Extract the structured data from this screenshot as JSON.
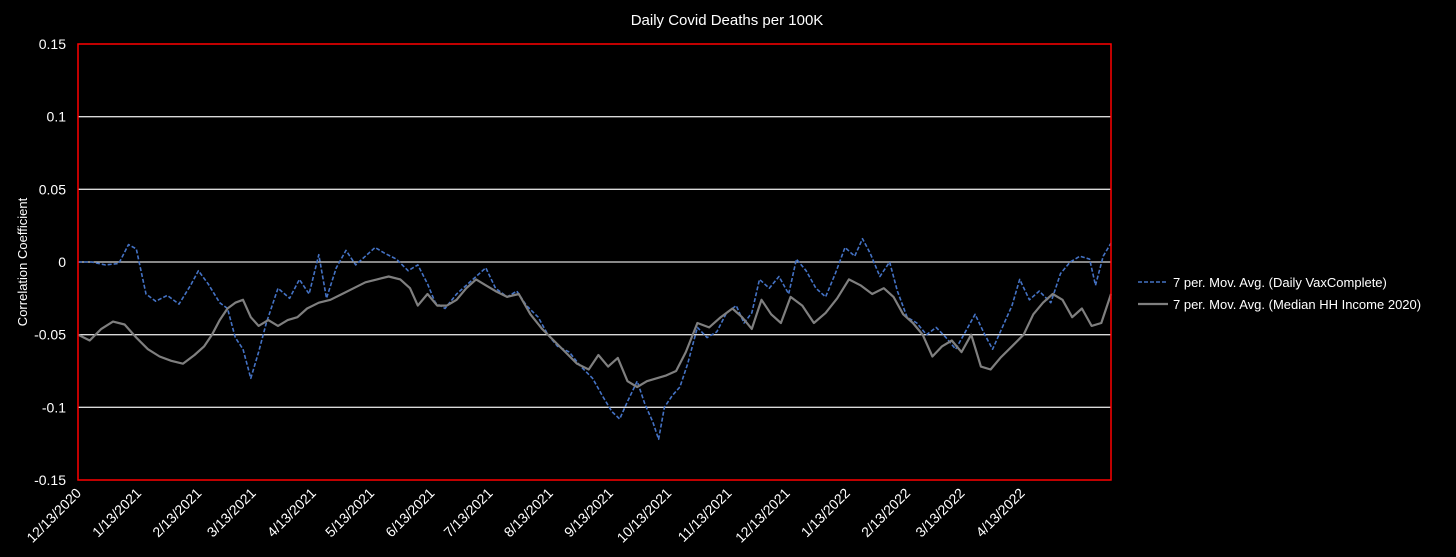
{
  "chart_data": {
    "type": "line",
    "title": "Daily Covid Deaths per 100K",
    "xlabel": "",
    "ylabel": "Correlation Coefficient",
    "ylim": [
      -0.15,
      0.15
    ],
    "y_ticks": [
      "0.15",
      "0.1",
      "0.05",
      "0",
      "-0.05",
      "-0.1",
      "-0.15"
    ],
    "y_tick_values": [
      0.15,
      0.1,
      0.05,
      0,
      -0.05,
      -0.1,
      -0.15
    ],
    "xlim": [
      "2020-12-13",
      "2022-05-29"
    ],
    "x_ticks": [
      {
        "label": "12/13/2020",
        "date": "2020-12-13"
      },
      {
        "label": "1/13/2021",
        "date": "2021-01-13"
      },
      {
        "label": "2/13/2021",
        "date": "2021-02-13"
      },
      {
        "label": "3/13/2021",
        "date": "2021-03-13"
      },
      {
        "label": "4/13/2021",
        "date": "2021-04-13"
      },
      {
        "label": "5/13/2021",
        "date": "2021-05-13"
      },
      {
        "label": "6/13/2021",
        "date": "2021-06-13"
      },
      {
        "label": "7/13/2021",
        "date": "2021-07-13"
      },
      {
        "label": "8/13/2021",
        "date": "2021-08-13"
      },
      {
        "label": "9/13/2021",
        "date": "2021-09-13"
      },
      {
        "label": "10/13/2021",
        "date": "2021-10-13"
      },
      {
        "label": "11/13/2021",
        "date": "2021-11-13"
      },
      {
        "label": "12/13/2021",
        "date": "2021-12-13"
      },
      {
        "label": "1/13/2022",
        "date": "2022-01-13"
      },
      {
        "label": "2/13/2022",
        "date": "2022-02-13"
      },
      {
        "label": "3/13/2022",
        "date": "2022-03-13"
      },
      {
        "label": "4/13/2022",
        "date": "2022-04-13"
      }
    ],
    "grid": true,
    "legend_position": "right",
    "plot_border_color": "#ff0000",
    "series": [
      {
        "name": "7 per. Mov. Avg. (Daily VaxComplete)",
        "color": "#4472c4",
        "dash": "dashed",
        "points": [
          [
            "2020-12-13",
            0.0
          ],
          [
            "2020-12-20",
            0.0
          ],
          [
            "2020-12-27",
            -0.002
          ],
          [
            "2021-01-03",
            -0.001
          ],
          [
            "2021-01-08",
            0.012
          ],
          [
            "2021-01-12",
            0.009
          ],
          [
            "2021-01-17",
            -0.022
          ],
          [
            "2021-01-22",
            -0.027
          ],
          [
            "2021-01-28",
            -0.023
          ],
          [
            "2021-02-03",
            -0.029
          ],
          [
            "2021-02-09",
            -0.016
          ],
          [
            "2021-02-13",
            -0.006
          ],
          [
            "2021-02-18",
            -0.015
          ],
          [
            "2021-02-24",
            -0.028
          ],
          [
            "2021-02-28",
            -0.032
          ],
          [
            "2021-03-04",
            -0.052
          ],
          [
            "2021-03-08",
            -0.06
          ],
          [
            "2021-03-12",
            -0.08
          ],
          [
            "2021-03-16",
            -0.062
          ],
          [
            "2021-03-20",
            -0.042
          ],
          [
            "2021-03-26",
            -0.018
          ],
          [
            "2021-04-01",
            -0.025
          ],
          [
            "2021-04-06",
            -0.012
          ],
          [
            "2021-04-11",
            -0.022
          ],
          [
            "2021-04-16",
            0.005
          ],
          [
            "2021-04-20",
            -0.025
          ],
          [
            "2021-04-25",
            -0.004
          ],
          [
            "2021-04-30",
            0.008
          ],
          [
            "2021-05-05",
            -0.002
          ],
          [
            "2021-05-10",
            0.004
          ],
          [
            "2021-05-15",
            0.01
          ],
          [
            "2021-05-20",
            0.006
          ],
          [
            "2021-05-26",
            0.002
          ],
          [
            "2021-06-01",
            -0.006
          ],
          [
            "2021-06-06",
            -0.002
          ],
          [
            "2021-06-11",
            -0.015
          ],
          [
            "2021-06-15",
            -0.028
          ],
          [
            "2021-06-20",
            -0.032
          ],
          [
            "2021-06-26",
            -0.022
          ],
          [
            "2021-07-01",
            -0.016
          ],
          [
            "2021-07-06",
            -0.01
          ],
          [
            "2021-07-11",
            -0.004
          ],
          [
            "2021-07-16",
            -0.018
          ],
          [
            "2021-07-22",
            -0.024
          ],
          [
            "2021-07-27",
            -0.02
          ],
          [
            "2021-08-01",
            -0.03
          ],
          [
            "2021-08-07",
            -0.038
          ],
          [
            "2021-08-12",
            -0.05
          ],
          [
            "2021-08-17",
            -0.058
          ],
          [
            "2021-08-23",
            -0.062
          ],
          [
            "2021-08-29",
            -0.072
          ],
          [
            "2021-09-04",
            -0.08
          ],
          [
            "2021-09-09",
            -0.092
          ],
          [
            "2021-09-14",
            -0.103
          ],
          [
            "2021-09-18",
            -0.108
          ],
          [
            "2021-09-22",
            -0.096
          ],
          [
            "2021-09-27",
            -0.082
          ],
          [
            "2021-10-01",
            -0.098
          ],
          [
            "2021-10-05",
            -0.11
          ],
          [
            "2021-10-08",
            -0.122
          ],
          [
            "2021-10-11",
            -0.1
          ],
          [
            "2021-10-15",
            -0.092
          ],
          [
            "2021-10-19",
            -0.086
          ],
          [
            "2021-10-23",
            -0.07
          ],
          [
            "2021-10-28",
            -0.045
          ],
          [
            "2021-11-02",
            -0.052
          ],
          [
            "2021-11-07",
            -0.048
          ],
          [
            "2021-11-12",
            -0.035
          ],
          [
            "2021-11-17",
            -0.03
          ],
          [
            "2021-11-21",
            -0.042
          ],
          [
            "2021-11-25",
            -0.035
          ],
          [
            "2021-11-29",
            -0.012
          ],
          [
            "2021-12-04",
            -0.018
          ],
          [
            "2021-12-09",
            -0.01
          ],
          [
            "2021-12-14",
            -0.022
          ],
          [
            "2021-12-18",
            0.002
          ],
          [
            "2021-12-23",
            -0.006
          ],
          [
            "2021-12-28",
            -0.018
          ],
          [
            "2022-01-02",
            -0.024
          ],
          [
            "2022-01-07",
            -0.008
          ],
          [
            "2022-01-12",
            0.01
          ],
          [
            "2022-01-17",
            0.004
          ],
          [
            "2022-01-21",
            0.016
          ],
          [
            "2022-01-25",
            0.006
          ],
          [
            "2022-01-30",
            -0.01
          ],
          [
            "2022-02-04",
            0.0
          ],
          [
            "2022-02-08",
            -0.02
          ],
          [
            "2022-02-13",
            -0.038
          ],
          [
            "2022-02-18",
            -0.042
          ],
          [
            "2022-02-23",
            -0.05
          ],
          [
            "2022-02-28",
            -0.045
          ],
          [
            "2022-03-05",
            -0.052
          ],
          [
            "2022-03-10",
            -0.06
          ],
          [
            "2022-03-15",
            -0.048
          ],
          [
            "2022-03-20",
            -0.036
          ],
          [
            "2022-03-25",
            -0.05
          ],
          [
            "2022-03-29",
            -0.06
          ],
          [
            "2022-04-03",
            -0.045
          ],
          [
            "2022-04-08",
            -0.03
          ],
          [
            "2022-04-12",
            -0.012
          ],
          [
            "2022-04-17",
            -0.026
          ],
          [
            "2022-04-22",
            -0.02
          ],
          [
            "2022-04-28",
            -0.028
          ],
          [
            "2022-05-03",
            -0.008
          ],
          [
            "2022-05-08",
            0.0
          ],
          [
            "2022-05-13",
            0.004
          ],
          [
            "2022-05-18",
            0.002
          ],
          [
            "2022-05-21",
            -0.016
          ],
          [
            "2022-05-25",
            0.004
          ],
          [
            "2022-05-29",
            0.013
          ]
        ]
      },
      {
        "name": "7 per. Mov. Avg. (Median HH Income 2020)",
        "color": "#7f7f7f",
        "dash": "solid",
        "points": [
          [
            "2020-12-13",
            -0.05
          ],
          [
            "2020-12-19",
            -0.054
          ],
          [
            "2020-12-25",
            -0.046
          ],
          [
            "2020-12-31",
            -0.041
          ],
          [
            "2021-01-06",
            -0.043
          ],
          [
            "2021-01-12",
            -0.052
          ],
          [
            "2021-01-18",
            -0.06
          ],
          [
            "2021-01-24",
            -0.065
          ],
          [
            "2021-01-30",
            -0.068
          ],
          [
            "2021-02-05",
            -0.07
          ],
          [
            "2021-02-11",
            -0.064
          ],
          [
            "2021-02-16",
            -0.058
          ],
          [
            "2021-02-20",
            -0.05
          ],
          [
            "2021-02-24",
            -0.04
          ],
          [
            "2021-02-28",
            -0.032
          ],
          [
            "2021-03-04",
            -0.028
          ],
          [
            "2021-03-08",
            -0.026
          ],
          [
            "2021-03-12",
            -0.038
          ],
          [
            "2021-03-16",
            -0.044
          ],
          [
            "2021-03-21",
            -0.04
          ],
          [
            "2021-03-26",
            -0.044
          ],
          [
            "2021-03-31",
            -0.04
          ],
          [
            "2021-04-05",
            -0.038
          ],
          [
            "2021-04-10",
            -0.032
          ],
          [
            "2021-04-16",
            -0.028
          ],
          [
            "2021-04-22",
            -0.026
          ],
          [
            "2021-04-28",
            -0.022
          ],
          [
            "2021-05-04",
            -0.018
          ],
          [
            "2021-05-10",
            -0.014
          ],
          [
            "2021-05-16",
            -0.012
          ],
          [
            "2021-05-22",
            -0.01
          ],
          [
            "2021-05-28",
            -0.012
          ],
          [
            "2021-06-02",
            -0.018
          ],
          [
            "2021-06-06",
            -0.03
          ],
          [
            "2021-06-11",
            -0.022
          ],
          [
            "2021-06-16",
            -0.03
          ],
          [
            "2021-06-21",
            -0.03
          ],
          [
            "2021-06-26",
            -0.026
          ],
          [
            "2021-07-01",
            -0.018
          ],
          [
            "2021-07-06",
            -0.012
          ],
          [
            "2021-07-11",
            -0.016
          ],
          [
            "2021-07-16",
            -0.02
          ],
          [
            "2021-07-22",
            -0.024
          ],
          [
            "2021-07-28",
            -0.022
          ],
          [
            "2021-08-03",
            -0.036
          ],
          [
            "2021-08-09",
            -0.046
          ],
          [
            "2021-08-15",
            -0.054
          ],
          [
            "2021-08-21",
            -0.062
          ],
          [
            "2021-08-27",
            -0.07
          ],
          [
            "2021-09-02",
            -0.074
          ],
          [
            "2021-09-07",
            -0.064
          ],
          [
            "2021-09-12",
            -0.072
          ],
          [
            "2021-09-17",
            -0.066
          ],
          [
            "2021-09-22",
            -0.082
          ],
          [
            "2021-09-27",
            -0.086
          ],
          [
            "2021-10-02",
            -0.082
          ],
          [
            "2021-10-07",
            -0.08
          ],
          [
            "2021-10-12",
            -0.078
          ],
          [
            "2021-10-17",
            -0.075
          ],
          [
            "2021-10-22",
            -0.062
          ],
          [
            "2021-10-28",
            -0.042
          ],
          [
            "2021-11-03",
            -0.045
          ],
          [
            "2021-11-09",
            -0.038
          ],
          [
            "2021-11-15",
            -0.032
          ],
          [
            "2021-11-20",
            -0.038
          ],
          [
            "2021-11-25",
            -0.046
          ],
          [
            "2021-11-30",
            -0.026
          ],
          [
            "2021-12-05",
            -0.036
          ],
          [
            "2021-12-10",
            -0.042
          ],
          [
            "2021-12-15",
            -0.024
          ],
          [
            "2021-12-21",
            -0.03
          ],
          [
            "2021-12-27",
            -0.042
          ],
          [
            "2022-01-02",
            -0.035
          ],
          [
            "2022-01-08",
            -0.025
          ],
          [
            "2022-01-14",
            -0.012
          ],
          [
            "2022-01-20",
            -0.016
          ],
          [
            "2022-01-26",
            -0.022
          ],
          [
            "2022-02-01",
            -0.018
          ],
          [
            "2022-02-06",
            -0.024
          ],
          [
            "2022-02-11",
            -0.036
          ],
          [
            "2022-02-16",
            -0.042
          ],
          [
            "2022-02-21",
            -0.05
          ],
          [
            "2022-02-26",
            -0.065
          ],
          [
            "2022-03-03",
            -0.058
          ],
          [
            "2022-03-08",
            -0.054
          ],
          [
            "2022-03-13",
            -0.062
          ],
          [
            "2022-03-18",
            -0.05
          ],
          [
            "2022-03-23",
            -0.072
          ],
          [
            "2022-03-28",
            -0.074
          ],
          [
            "2022-04-02",
            -0.066
          ],
          [
            "2022-04-08",
            -0.058
          ],
          [
            "2022-04-14",
            -0.05
          ],
          [
            "2022-04-19",
            -0.036
          ],
          [
            "2022-04-24",
            -0.028
          ],
          [
            "2022-04-29",
            -0.022
          ],
          [
            "2022-05-04",
            -0.026
          ],
          [
            "2022-05-09",
            -0.038
          ],
          [
            "2022-05-14",
            -0.032
          ],
          [
            "2022-05-19",
            -0.044
          ],
          [
            "2022-05-24",
            -0.042
          ],
          [
            "2022-05-29",
            -0.022
          ]
        ]
      }
    ]
  }
}
